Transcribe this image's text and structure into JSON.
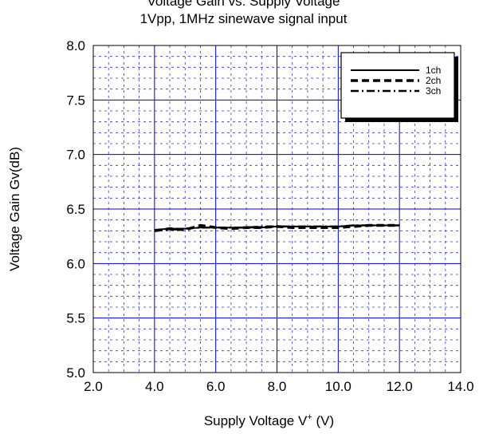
{
  "chart_data": {
    "type": "line",
    "title": "Voltage Gain vs. Supply Voltage",
    "subtitle": "1Vpp, 1MHz sinewave signal input",
    "xlabel": "Supply Voltage  V",
    "xlabel_sup": "+",
    "xlabel_unit": " (V)",
    "ylabel": "Voltage Gain  Gv(dB)",
    "xlim": [
      2.0,
      14.0
    ],
    "ylim": [
      5.0,
      8.0
    ],
    "x_ticks": [
      2.0,
      4.0,
      6.0,
      8.0,
      10.0,
      12.0,
      14.0
    ],
    "x_tick_labels": [
      "2.0",
      "4.0",
      "6.0",
      "8.0",
      "10.0",
      "12.0",
      "14.0"
    ],
    "y_ticks": [
      5.0,
      5.5,
      6.0,
      6.5,
      7.0,
      7.5,
      8.0
    ],
    "y_tick_labels": [
      "5.0",
      "5.5",
      "6.0",
      "6.5",
      "7.0",
      "7.5",
      "8.0"
    ],
    "grid": true,
    "legend_position": "top-right",
    "series": [
      {
        "name": "1ch",
        "style": "solid",
        "x": [
          4.0,
          4.5,
          5.0,
          5.5,
          6.0,
          6.5,
          7.0,
          7.5,
          8.0,
          8.5,
          9.0,
          9.5,
          10.0,
          10.5,
          11.0,
          11.5,
          12.0
        ],
        "y": [
          6.31,
          6.32,
          6.32,
          6.33,
          6.33,
          6.33,
          6.33,
          6.33,
          6.34,
          6.34,
          6.34,
          6.34,
          6.34,
          6.35,
          6.35,
          6.35,
          6.35
        ]
      },
      {
        "name": "2ch",
        "style": "dash",
        "x": [
          4.0,
          4.5,
          5.0,
          5.5,
          6.0,
          6.5,
          7.0,
          7.5,
          8.0,
          8.5,
          9.0,
          9.5,
          10.0,
          10.5,
          11.0,
          11.5,
          12.0
        ],
        "y": [
          6.3,
          6.32,
          6.31,
          6.35,
          6.33,
          6.32,
          6.33,
          6.33,
          6.34,
          6.33,
          6.33,
          6.33,
          6.33,
          6.34,
          6.35,
          6.35,
          6.35
        ]
      },
      {
        "name": "3ch",
        "style": "dashdot",
        "x": [
          4.0,
          4.5,
          5.0,
          5.5,
          6.0,
          6.5,
          7.0,
          7.5,
          8.0,
          8.5,
          9.0,
          9.5,
          10.0,
          10.5,
          11.0,
          11.5,
          12.0
        ],
        "y": [
          6.3,
          6.31,
          6.32,
          6.33,
          6.33,
          6.33,
          6.33,
          6.34,
          6.34,
          6.34,
          6.34,
          6.34,
          6.34,
          6.35,
          6.35,
          6.35,
          6.35
        ]
      }
    ],
    "colors": {
      "grid_major": "#0000cc",
      "grid_minor": "#3333cc",
      "line": "#000000"
    }
  }
}
